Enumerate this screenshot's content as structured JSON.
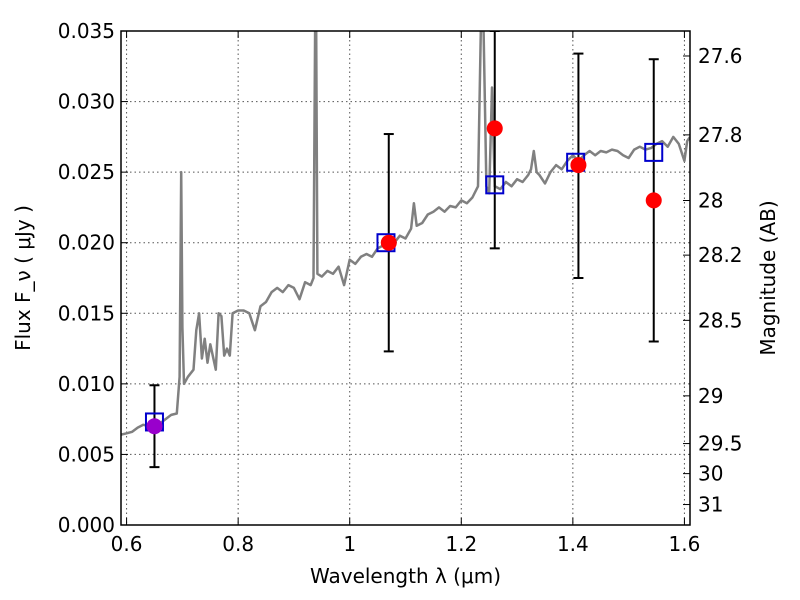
{
  "chart_data": {
    "type": "line",
    "xlabel": "Wavelength  λ (μm)",
    "ylabel": "Flux  F_ν  ( μJy )",
    "ylabel_right": "Magnitude (AB)",
    "xlim": [
      0.59,
      1.61
    ],
    "ylim": [
      0,
      0.035
    ],
    "x_ticks": [
      0.6,
      0.8,
      1.0,
      1.2,
      1.4,
      1.6
    ],
    "x_tick_labels": [
      "0.6",
      "0.8",
      "1",
      "1.2",
      "1.4",
      "1.6"
    ],
    "y_ticks": [
      0,
      0.005,
      0.01,
      0.015,
      0.02,
      0.025,
      0.03,
      0.035
    ],
    "y_tick_labels": [
      "0.000",
      "0.005",
      "0.010",
      "0.015",
      "0.020",
      "0.025",
      "0.030",
      "0.035"
    ],
    "right_ticks": [
      {
        "label": "27.6",
        "flux": 0.03323
      },
      {
        "label": "27.8",
        "flux": 0.02764
      },
      {
        "label": "28",
        "flux": 0.02299
      },
      {
        "label": "28.2",
        "flux": 0.01912
      },
      {
        "label": "28.5",
        "flux": 0.0145
      },
      {
        "label": "29",
        "flux": 0.00915
      },
      {
        "label": "29.5",
        "flux": 0.00577
      },
      {
        "label": "30",
        "flux": 0.00364
      },
      {
        "label": "31",
        "flux": 0.00145
      }
    ],
    "grid": true,
    "colors": {
      "model": "#808080",
      "observed": "#ff0000",
      "errorbar": "#000000",
      "model_band": "#0000cc",
      "overlap": "#9900cc"
    },
    "series": [
      {
        "kind": "line",
        "points": [
          [
            0.59,
            0.0064
          ],
          [
            0.6,
            0.0065
          ],
          [
            0.61,
            0.0066
          ],
          [
            0.62,
            0.0069
          ],
          [
            0.63,
            0.0071
          ],
          [
            0.64,
            0.007
          ],
          [
            0.65,
            0.0071
          ],
          [
            0.66,
            0.0072
          ],
          [
            0.67,
            0.0075
          ],
          [
            0.68,
            0.0078
          ],
          [
            0.69,
            0.0079
          ],
          [
            0.695,
            0.0105
          ],
          [
            0.698,
            0.025
          ],
          [
            0.7,
            0.014
          ],
          [
            0.703,
            0.01
          ],
          [
            0.71,
            0.0105
          ],
          [
            0.72,
            0.011
          ],
          [
            0.725,
            0.0138
          ],
          [
            0.73,
            0.015
          ],
          [
            0.735,
            0.0118
          ],
          [
            0.74,
            0.0132
          ],
          [
            0.745,
            0.0115
          ],
          [
            0.75,
            0.0128
          ],
          [
            0.76,
            0.011
          ],
          [
            0.765,
            0.015
          ],
          [
            0.77,
            0.0148
          ],
          [
            0.775,
            0.012
          ],
          [
            0.78,
            0.0125
          ],
          [
            0.785,
            0.012
          ],
          [
            0.79,
            0.015
          ],
          [
            0.8,
            0.0152
          ],
          [
            0.81,
            0.0152
          ],
          [
            0.82,
            0.015
          ],
          [
            0.83,
            0.0138
          ],
          [
            0.84,
            0.0155
          ],
          [
            0.85,
            0.0158
          ],
          [
            0.86,
            0.0165
          ],
          [
            0.87,
            0.0168
          ],
          [
            0.88,
            0.0165
          ],
          [
            0.89,
            0.017
          ],
          [
            0.9,
            0.0168
          ],
          [
            0.91,
            0.016
          ],
          [
            0.92,
            0.0172
          ],
          [
            0.93,
            0.017
          ],
          [
            0.935,
            0.0175
          ],
          [
            0.938,
            0.035
          ],
          [
            0.94,
            0.035
          ],
          [
            0.942,
            0.0178
          ],
          [
            0.95,
            0.0176
          ],
          [
            0.96,
            0.018
          ],
          [
            0.97,
            0.0178
          ],
          [
            0.98,
            0.0183
          ],
          [
            0.99,
            0.017
          ],
          [
            1.0,
            0.0188
          ],
          [
            1.01,
            0.0185
          ],
          [
            1.02,
            0.019
          ],
          [
            1.03,
            0.0192
          ],
          [
            1.04,
            0.019
          ],
          [
            1.05,
            0.0196
          ],
          [
            1.06,
            0.0198
          ],
          [
            1.07,
            0.0195
          ],
          [
            1.08,
            0.02
          ],
          [
            1.09,
            0.0205
          ],
          [
            1.1,
            0.0203
          ],
          [
            1.11,
            0.021
          ],
          [
            1.115,
            0.0228
          ],
          [
            1.12,
            0.0212
          ],
          [
            1.13,
            0.0214
          ],
          [
            1.14,
            0.022
          ],
          [
            1.15,
            0.0222
          ],
          [
            1.16,
            0.0225
          ],
          [
            1.17,
            0.0222
          ],
          [
            1.18,
            0.0226
          ],
          [
            1.19,
            0.0225
          ],
          [
            1.2,
            0.023
          ],
          [
            1.21,
            0.0228
          ],
          [
            1.22,
            0.0232
          ],
          [
            1.23,
            0.024
          ],
          [
            1.235,
            0.035
          ],
          [
            1.24,
            0.035
          ],
          [
            1.245,
            0.024
          ],
          [
            1.25,
            0.0235
          ],
          [
            1.255,
            0.031
          ],
          [
            1.26,
            0.024
          ],
          [
            1.27,
            0.0238
          ],
          [
            1.28,
            0.0243
          ],
          [
            1.29,
            0.024
          ],
          [
            1.3,
            0.0245
          ],
          [
            1.31,
            0.0243
          ],
          [
            1.32,
            0.0248
          ],
          [
            1.325,
            0.0252
          ],
          [
            1.33,
            0.0265
          ],
          [
            1.335,
            0.025
          ],
          [
            1.34,
            0.0248
          ],
          [
            1.35,
            0.0242
          ],
          [
            1.36,
            0.025
          ],
          [
            1.37,
            0.0255
          ],
          [
            1.38,
            0.0252
          ],
          [
            1.39,
            0.0258
          ],
          [
            1.4,
            0.0262
          ],
          [
            1.41,
            0.0258
          ],
          [
            1.42,
            0.0262
          ],
          [
            1.43,
            0.0265
          ],
          [
            1.44,
            0.0262
          ],
          [
            1.45,
            0.0265
          ],
          [
            1.46,
            0.0264
          ],
          [
            1.47,
            0.0266
          ],
          [
            1.48,
            0.0265
          ],
          [
            1.49,
            0.0262
          ],
          [
            1.5,
            0.026
          ],
          [
            1.51,
            0.0266
          ],
          [
            1.52,
            0.0268
          ],
          [
            1.53,
            0.0266
          ],
          [
            1.54,
            0.0267
          ],
          [
            1.55,
            0.027
          ],
          [
            1.56,
            0.0272
          ],
          [
            1.57,
            0.0268
          ],
          [
            1.58,
            0.0275
          ],
          [
            1.59,
            0.027
          ],
          [
            1.6,
            0.0258
          ],
          [
            1.605,
            0.0272
          ],
          [
            1.61,
            0.0275
          ]
        ]
      },
      {
        "kind": "errorbar",
        "points": [
          {
            "x": 0.65,
            "y": 0.007,
            "ylo": 0.0041,
            "yhi": 0.0099
          },
          {
            "x": 1.07,
            "y": 0.02,
            "ylo": 0.0123,
            "yhi": 0.0277
          },
          {
            "x": 1.26,
            "y": 0.0281,
            "ylo": 0.0196,
            "yhi": 0.035
          },
          {
            "x": 1.41,
            "y": 0.0255,
            "ylo": 0.0175,
            "yhi": 0.0334
          },
          {
            "x": 1.545,
            "y": 0.023,
            "ylo": 0.013,
            "yhi": 0.033
          }
        ]
      },
      {
        "kind": "markers",
        "points": [
          {
            "x": 0.65,
            "y": 0.0073
          },
          {
            "x": 1.065,
            "y": 0.02
          },
          {
            "x": 1.26,
            "y": 0.0241
          },
          {
            "x": 1.405,
            "y": 0.0257
          },
          {
            "x": 1.545,
            "y": 0.0264
          }
        ]
      }
    ]
  }
}
